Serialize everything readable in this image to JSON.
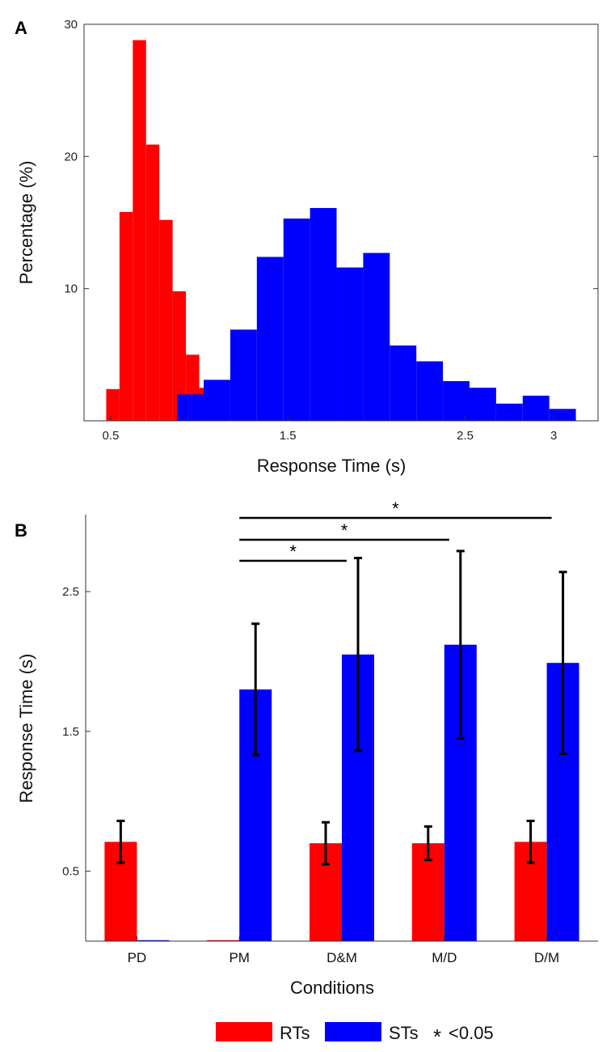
{
  "chart_data": [
    {
      "panel": "A",
      "type": "bar",
      "subtype": "histogram",
      "xlabel": "Response Time (s)",
      "ylabel": "Percentage (%)",
      "xlim": [
        0.35,
        3.25
      ],
      "ylim": [
        0,
        30
      ],
      "xticks": [
        0.5,
        1.5,
        2.5,
        3
      ],
      "xtick_labels": [
        "0.5",
        "1.5",
        "2.5",
        "3"
      ],
      "yticks": [
        10,
        20,
        30
      ],
      "ytick_labels": [
        "10",
        "20",
        "30"
      ],
      "series": [
        {
          "name": "RTs",
          "color": "#ff0000",
          "bins": [
            {
              "x0": 0.475,
              "x1": 0.55,
              "value": 2.4
            },
            {
              "x0": 0.55,
              "x1": 0.625,
              "value": 15.8
            },
            {
              "x0": 0.625,
              "x1": 0.7,
              "value": 28.8
            },
            {
              "x0": 0.7,
              "x1": 0.775,
              "value": 20.9
            },
            {
              "x0": 0.775,
              "x1": 0.85,
              "value": 15.2
            },
            {
              "x0": 0.85,
              "x1": 0.925,
              "value": 9.8
            },
            {
              "x0": 0.925,
              "x1": 1.0,
              "value": 5.0
            },
            {
              "x0": 1.0,
              "x1": 1.075,
              "value": 2.5
            }
          ]
        },
        {
          "name": "STs",
          "color": "#0000ff",
          "bins": [
            {
              "x0": 0.875,
              "x1": 1.025,
              "value": 2.0
            },
            {
              "x0": 1.025,
              "x1": 1.175,
              "value": 3.1
            },
            {
              "x0": 1.175,
              "x1": 1.325,
              "value": 6.9
            },
            {
              "x0": 1.325,
              "x1": 1.475,
              "value": 12.4
            },
            {
              "x0": 1.475,
              "x1": 1.625,
              "value": 15.3
            },
            {
              "x0": 1.625,
              "x1": 1.775,
              "value": 16.1
            },
            {
              "x0": 1.775,
              "x1": 1.925,
              "value": 11.6
            },
            {
              "x0": 1.925,
              "x1": 2.075,
              "value": 12.7
            },
            {
              "x0": 2.075,
              "x1": 2.225,
              "value": 5.7
            },
            {
              "x0": 2.225,
              "x1": 2.375,
              "value": 4.5
            },
            {
              "x0": 2.375,
              "x1": 2.525,
              "value": 3.0
            },
            {
              "x0": 2.525,
              "x1": 2.675,
              "value": 2.5
            },
            {
              "x0": 2.675,
              "x1": 2.825,
              "value": 1.3
            },
            {
              "x0": 2.825,
              "x1": 2.975,
              "value": 1.9
            },
            {
              "x0": 2.975,
              "x1": 3.125,
              "value": 0.9
            }
          ]
        }
      ]
    },
    {
      "panel": "B",
      "type": "bar",
      "xlabel": "Conditions",
      "ylabel": "Response Time (s)",
      "categories": [
        "PD",
        "PM",
        "D&M",
        "M/D",
        "D/M"
      ],
      "ylim": [
        0,
        3.05
      ],
      "yticks": [
        0.5,
        1.5,
        2.5
      ],
      "ytick_labels": [
        "0.5",
        "1.5",
        "2.5"
      ],
      "series": [
        {
          "name": "RTs",
          "color": "#ff0000",
          "values": [
            0.71,
            0.0,
            0.7,
            0.7,
            0.71
          ],
          "errors": [
            0.15,
            0.0,
            0.15,
            0.12,
            0.15
          ]
        },
        {
          "name": "STs",
          "color": "#0000ff",
          "values": [
            0.0,
            1.8,
            2.05,
            2.12,
            1.99
          ],
          "errors": [
            0.0,
            0.47,
            0.69,
            0.67,
            0.65
          ]
        }
      ],
      "significance": [
        {
          "from": "PM",
          "to": "D&M",
          "label": "*"
        },
        {
          "from": "PM",
          "to": "M/D",
          "label": "*"
        },
        {
          "from": "PM",
          "to": "D/M",
          "label": "*"
        }
      ],
      "legend": {
        "position": "bottom",
        "items": [
          {
            "label": "RTs",
            "color": "#ff0000"
          },
          {
            "label": "STs",
            "color": "#0000ff"
          }
        ],
        "note": "<0.05",
        "note_symbol": "*"
      }
    }
  ]
}
